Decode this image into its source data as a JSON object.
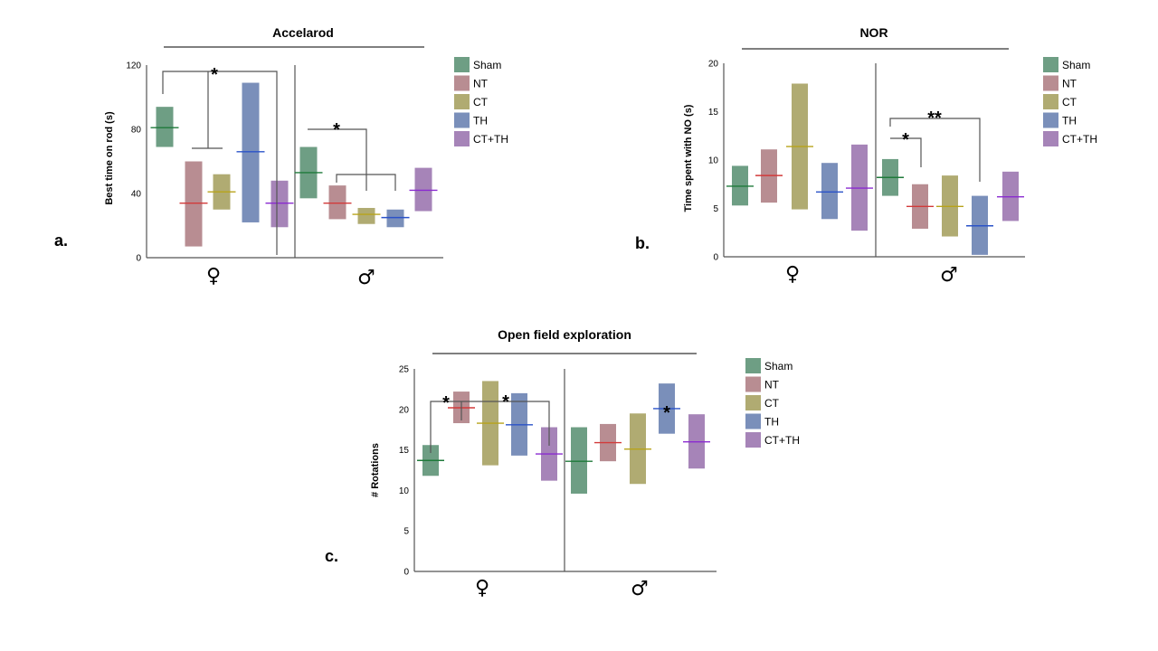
{
  "colors": {
    "Sham": {
      "fill": "#6e9e84",
      "line": "#1f7a3a"
    },
    "NT": {
      "fill": "#b88d92",
      "line": "#d23a3a"
    },
    "CT": {
      "fill": "#b0ab72",
      "line": "#b8a31a"
    },
    "TH": {
      "fill": "#7a8fba",
      "line": "#2a52c8"
    },
    "CT+TH": {
      "fill": "#a684b8",
      "line": "#8a2ad0"
    }
  },
  "legend_labels": [
    "Sham",
    "NT",
    "CT",
    "TH",
    "CT+TH"
  ],
  "chart_data": [
    {
      "panel": "a.",
      "type": "floating-bar",
      "title": "Accelarod",
      "ylabel": "Best time on rod (s)",
      "ylim": [
        0,
        120
      ],
      "yticks": [
        0,
        40,
        80,
        120
      ],
      "groups": [
        "♀",
        "♂"
      ],
      "series": [
        "Sham",
        "NT",
        "CT",
        "TH",
        "CT+TH"
      ],
      "data": [
        [
          {
            "low": 69,
            "high": 94,
            "mean": 81
          },
          {
            "low": 7,
            "high": 60,
            "mean": 34
          },
          {
            "low": 30,
            "high": 52,
            "mean": 41
          },
          {
            "low": 22,
            "high": 109,
            "mean": 66
          },
          {
            "low": 19,
            "high": 48,
            "mean": 34
          }
        ],
        [
          {
            "low": 37,
            "high": 69,
            "mean": 53
          },
          {
            "low": 24,
            "high": 45,
            "mean": 34
          },
          {
            "low": 21,
            "high": 31,
            "mean": 27
          },
          {
            "low": 19,
            "high": 30,
            "mean": 25
          },
          {
            "low": 29,
            "high": 56,
            "mean": 42
          }
        ]
      ],
      "significance": [
        "*",
        "*"
      ]
    },
    {
      "panel": "b.",
      "type": "floating-bar",
      "title": "NOR",
      "ylabel": "Time spent with NO (s)",
      "ylim": [
        0,
        20
      ],
      "yticks": [
        0,
        5,
        10,
        15,
        20
      ],
      "groups": [
        "♀",
        "♂"
      ],
      "series": [
        "Sham",
        "NT",
        "CT",
        "TH",
        "CT+TH"
      ],
      "data": [
        [
          {
            "low": 5.3,
            "high": 9.4,
            "mean": 7.3
          },
          {
            "low": 5.6,
            "high": 11.1,
            "mean": 8.4
          },
          {
            "low": 4.9,
            "high": 17.9,
            "mean": 11.4
          },
          {
            "low": 3.9,
            "high": 9.7,
            "mean": 6.7
          },
          {
            "low": 2.7,
            "high": 11.6,
            "mean": 7.1
          }
        ],
        [
          {
            "low": 6.3,
            "high": 10.1,
            "mean": 8.2
          },
          {
            "low": 2.9,
            "high": 7.5,
            "mean": 5.2
          },
          {
            "low": 2.1,
            "high": 8.4,
            "mean": 5.2
          },
          {
            "low": 0.2,
            "high": 6.3,
            "mean": 3.2
          },
          {
            "low": 3.7,
            "high": 8.8,
            "mean": 6.2
          }
        ]
      ],
      "significance": [
        "*",
        "**"
      ]
    },
    {
      "panel": "c.",
      "type": "floating-bar",
      "title": "Open field exploration",
      "ylabel": "# Rotations",
      "ylim": [
        0,
        25
      ],
      "yticks": [
        0,
        5,
        10,
        15,
        20,
        25
      ],
      "groups": [
        "♀",
        "♂"
      ],
      "series": [
        "Sham",
        "NT",
        "CT",
        "TH",
        "CT+TH"
      ],
      "data": [
        [
          {
            "low": 11.8,
            "high": 15.6,
            "mean": 13.7
          },
          {
            "low": 18.3,
            "high": 22.2,
            "mean": 20.2
          },
          {
            "low": 13.1,
            "high": 23.5,
            "mean": 18.3
          },
          {
            "low": 14.3,
            "high": 22.0,
            "mean": 18.1
          },
          {
            "low": 11.2,
            "high": 17.8,
            "mean": 14.5
          }
        ],
        [
          {
            "low": 9.6,
            "high": 17.8,
            "mean": 13.6
          },
          {
            "low": 13.6,
            "high": 18.2,
            "mean": 15.9
          },
          {
            "low": 10.8,
            "high": 19.5,
            "mean": 15.1
          },
          {
            "low": 17.0,
            "high": 23.2,
            "mean": 20.1
          },
          {
            "low": 12.7,
            "high": 19.4,
            "mean": 16.0
          }
        ]
      ],
      "significance": [
        "*",
        "*",
        "*"
      ]
    }
  ]
}
